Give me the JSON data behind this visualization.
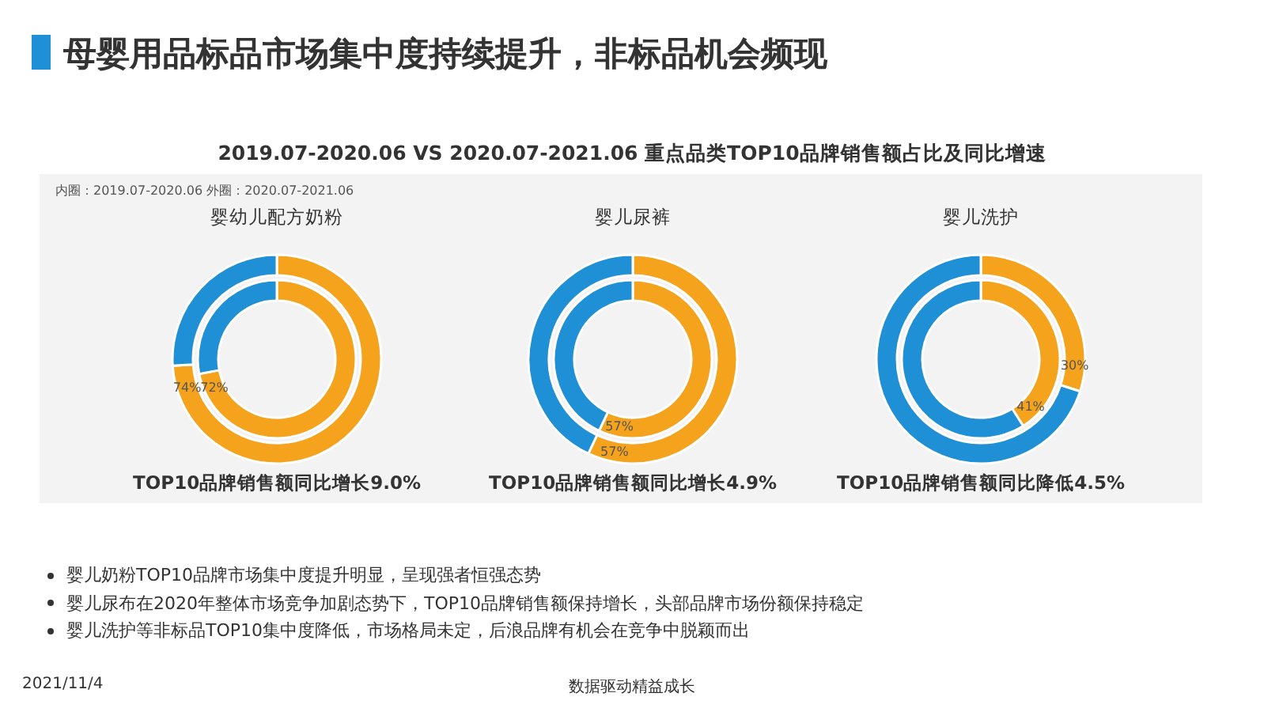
{
  "chart_data": [
    {
      "type": "other",
      "title": "母婴用品标品市场集中度持续提升，非标品机会频现",
      "subtitle": "2019.07-2020.06 VS 2020.07-2021.06 重点品类TOP10品牌销售额占比及同比增速",
      "annotations": [
        "婴儿奶粉TOP10品牌市场集中度提升明显，呈现强者恒强态势",
        "婴儿尿布在2020年整体市场竞争加剧态势下，TOP10品牌销售额保持增长，头部品牌市场份额保持稳定",
        "婴儿洗护等非标品TOP10集中度降低，市场格局未定，后浪品牌有机会在竞争中脱颖而出",
        "2021/11/4",
        "数据驱动精益成长"
      ]
    },
    {
      "type": "donut",
      "title": "婴幼儿配方奶粉",
      "categories": [
        null,
        null
      ],
      "annotations": [
        "内圈：2019.07-2020.06",
        "外圈：2020.07-2021.06",
        "TOP10品牌销售额同比增长9.0%"
      ],
      "series": [
        {
          "values": [
            72,
            28
          ],
          "colors": [
            "#f5a21c",
            "#1f8fd6"
          ],
          "value_labels": [
            "72%",
            null
          ]
        },
        {
          "values": [
            74,
            26
          ],
          "colors": [
            "#f5a21c",
            "#1f8fd6"
          ],
          "value_labels": [
            "74%",
            null
          ]
        }
      ]
    },
    {
      "type": "donut",
      "title": "婴儿尿裤",
      "categories": [
        null,
        null
      ],
      "annotations": [
        "TOP10品牌销售额同比增长4.9%"
      ],
      "series": [
        {
          "values": [
            57,
            43
          ],
          "colors": [
            "#f5a21c",
            "#1f8fd6"
          ],
          "value_labels": [
            "57%",
            null
          ]
        },
        {
          "values": [
            57,
            43
          ],
          "colors": [
            "#f5a21c",
            "#1f8fd6"
          ],
          "value_labels": [
            "57%",
            null
          ]
        }
      ]
    },
    {
      "type": "donut",
      "title": "婴儿洗护",
      "categories": [
        null,
        null
      ],
      "annotations": [
        "TOP10品牌销售额同比降低4.5%"
      ],
      "series": [
        {
          "values": [
            41,
            59
          ],
          "colors": [
            "#f5a21c",
            "#1f8fd6"
          ],
          "value_labels": [
            "41%",
            null
          ]
        },
        {
          "values": [
            30,
            70
          ],
          "colors": [
            "#f5a21c",
            "#1f8fd6"
          ],
          "value_labels": [
            "30%",
            null
          ]
        }
      ]
    }
  ]
}
